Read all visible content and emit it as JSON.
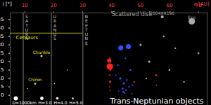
{
  "chart_data": {
    "type": "scatter",
    "title": "Trans-Neptunian objects",
    "x_label": "a [AU]",
    "y_label": "i [°]",
    "xlim": [
      5,
      73
    ],
    "ylim": [
      -6,
      49
    ],
    "xticks": [
      10,
      20,
      30,
      40,
      50,
      60,
      70
    ],
    "yticks": [
      0,
      5,
      10,
      15,
      20,
      25,
      30,
      35,
      40,
      45
    ],
    "grid": false,
    "legend": "bottom-left",
    "x": [
      13.6,
      15.8,
      20.3,
      24.7,
      11.0,
      39.4,
      39.2,
      39.5,
      39.4,
      39.3,
      39.6,
      39.4,
      39.5,
      43.2,
      45.8,
      44.0,
      44.5,
      45.0,
      43.8,
      46.0,
      42.5,
      47.0,
      44.2,
      43.0,
      46.5,
      42.2,
      44.8,
      41.5,
      45.3,
      47.3,
      47.8,
      55.4,
      55.5,
      67.7,
      57.5,
      53.0,
      60.0,
      50.0,
      65.0,
      70.0,
      58.0,
      52.0,
      62.0
    ],
    "y": [
      6.9,
      23.4,
      7.0,
      15.0,
      4.0,
      17.1,
      20.6,
      8.0,
      12.0,
      5.0,
      15.0,
      22.0,
      3.0,
      28.2,
      29.0,
      2.0,
      1.5,
      3.0,
      4.0,
      5.0,
      2.5,
      1.0,
      7.0,
      10.0,
      15.0,
      18.0,
      22.0,
      12.0,
      9.0,
      6.0,
      8.0,
      12.0,
      6.0,
      44.0,
      46.7,
      20.0,
      15.0,
      30.0,
      8.0,
      25.0,
      35.0,
      10.0,
      28.0
    ],
    "colors": [
      "#dddd55",
      "#dddd55",
      "#dddd55",
      "#dddd55",
      "#dddd55",
      "#ff2020",
      "#ff2020",
      "#ff2020",
      "#ff2020",
      "#ff2020",
      "#ff2020",
      "#ff2020",
      "#ff2020",
      "#3050ff",
      "#3050ff",
      "#3050ff",
      "#3050ff",
      "#3050ff",
      "#3050ff",
      "#3050ff",
      "#3050ff",
      "#3050ff",
      "#3050ff",
      "#3050ff",
      "#3050ff",
      "#3050ff",
      "#3050ff",
      "#3050ff",
      "#3050ff",
      "#3050ff",
      "#ff2020",
      "#ff2020",
      "#ff2020",
      "#aaaaaa",
      "#aaaaaa",
      "#aaaaaa",
      "#aaaaaa",
      "#aaaaaa",
      "#aaaaaa",
      "#aaaaaa",
      "#aaaaaa",
      "#aaaaaa",
      "#aaaaaa"
    ],
    "diameter_km": [
      200,
      250,
      80,
      60,
      50,
      2370,
      900,
      300,
      150,
      100,
      200,
      120,
      100,
      1400,
      1400,
      200,
      150,
      120,
      180,
      150,
      100,
      100,
      250,
      300,
      200,
      150,
      120,
      100,
      150,
      100,
      150,
      200,
      100,
      2326,
      500,
      300,
      200,
      250,
      150,
      200,
      180,
      150,
      150
    ],
    "planets": [
      {
        "name": "SATURN",
        "a": 9.5
      },
      {
        "name": "URANUS",
        "a": 19.2
      },
      {
        "name": "NEPTUNE",
        "a": 30.1
      }
    ],
    "annotations": [
      {
        "text": "Chariklo",
        "x": 15.8,
        "y": 23.4,
        "color": "#e8e000"
      },
      {
        "text": "Chiron",
        "x": 13.6,
        "y": 6.9,
        "color": "#e8e000"
      },
      {
        "text": "Eris",
        "x": 67.7,
        "y": 44.0,
        "color": "#aaaaaa"
      },
      {
        "text": "2004XR190",
        "x": 57.5,
        "y": 46.7,
        "color": "#aaaaaa"
      }
    ],
    "regions": [
      {
        "text": "Centaurs",
        "color": "#e8e000",
        "y": 37,
        "x": [
          5,
          30.1
        ]
      },
      {
        "text": "Scattered disk",
        "color": "#aaaaaa",
        "y": 48,
        "x": 47
      }
    ],
    "legend_items": [
      {
        "label": "D=1000km",
        "diameter_km": 1000
      },
      {
        "label": "H=3.0"
      },
      {
        "label": "H=4.0"
      },
      {
        "label": "H=5.0"
      }
    ]
  }
}
